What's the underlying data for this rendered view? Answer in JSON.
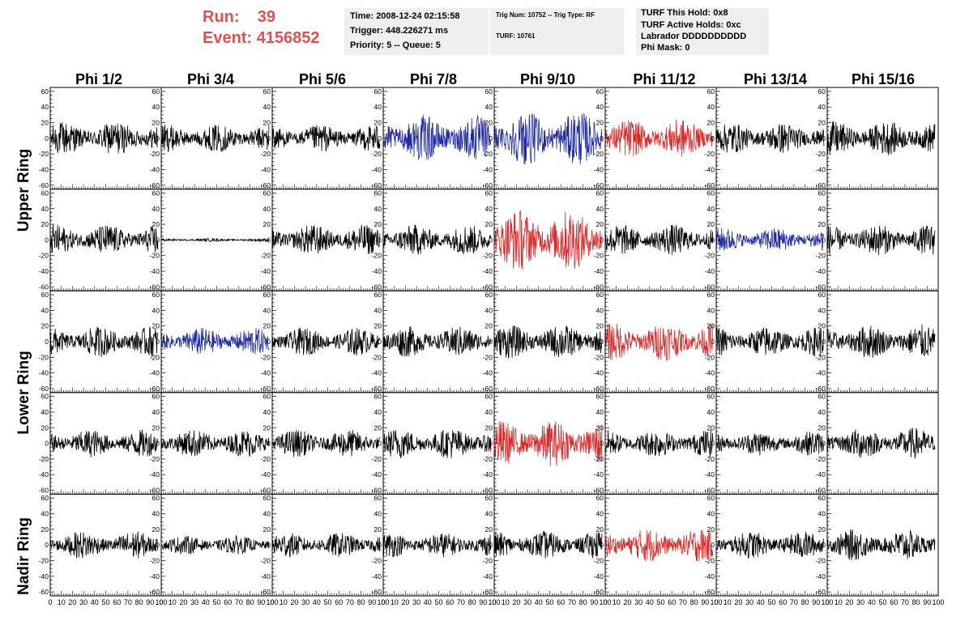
{
  "header": {
    "run_label": "Run:",
    "run_value": "39",
    "event_label": "Event:",
    "event_value": "4156852",
    "time_panel": {
      "time": "Time: 2008-12-24 02:15:58",
      "trigger": "Trigger: 448.226271 ms",
      "priority": "Priority: 5 -- Queue: 5"
    },
    "trig_panel": {
      "trig": "Trig Num: 10752 -- Trig Type: RF",
      "turf": "TURF: 10761"
    },
    "turf_panel": {
      "hold": "TURF This Hold: 0x8",
      "active": "TURF Active Holds: 0xc",
      "labrador": "Labrador DDDDDDDDDD",
      "phi_mask": "Phi Mask: 0"
    },
    "accent_color": "#d9534f"
  },
  "chart_data": {
    "type": "line",
    "columns": [
      "Phi 1/2",
      "Phi 3/4",
      "Phi 5/6",
      "Phi 7/8",
      "Phi 9/10",
      "Phi 11/12",
      "Phi 13/14",
      "Phi 15/16"
    ],
    "rows": [
      "Upper Ring",
      "Upper Ring",
      "Lower Ring",
      "Lower Ring",
      "Nadir Ring"
    ],
    "ring_labels": [
      "Upper Ring",
      "Lower Ring",
      "Nadir Ring"
    ],
    "xlim": [
      0,
      100
    ],
    "ylim": [
      -65,
      65
    ],
    "x_ticks": [
      0,
      10,
      20,
      30,
      40,
      50,
      60,
      70,
      80,
      90,
      100
    ],
    "x_tick_labels": [
      "0",
      "10",
      "20",
      "30",
      "40",
      "50",
      "60",
      "70",
      "80",
      "90",
      "100"
    ],
    "y_ticks": [
      -60,
      -40,
      -20,
      0,
      20,
      40,
      60
    ],
    "y_tick_labels": [
      "-60",
      "-40",
      "-20",
      "0",
      "20",
      "40",
      "60"
    ],
    "colors": {
      "default": "#000000",
      "blue": "#1f2b9e",
      "red": "#d62c2c"
    },
    "cell_colors": [
      [
        "default",
        "default",
        "default",
        "blue",
        "blue",
        "red",
        "default",
        "default"
      ],
      [
        "default",
        "default",
        "default",
        "default",
        "red",
        "default",
        "blue",
        "default"
      ],
      [
        "default",
        "blue",
        "default",
        "default",
        "default",
        "red",
        "default",
        "default"
      ],
      [
        "default",
        "default",
        "default",
        "default",
        "red",
        "default",
        "default",
        "default"
      ],
      [
        "default",
        "default",
        "default",
        "default",
        "default",
        "red",
        "default",
        "default"
      ]
    ],
    "cell_amplitudes": [
      [
        22,
        18,
        18,
        30,
        35,
        25,
        20,
        22
      ],
      [
        20,
        2,
        20,
        20,
        40,
        20,
        16,
        20
      ],
      [
        20,
        18,
        18,
        20,
        22,
        25,
        20,
        22
      ],
      [
        18,
        18,
        18,
        20,
        30,
        18,
        16,
        20
      ],
      [
        18,
        12,
        16,
        16,
        18,
        22,
        18,
        20
      ]
    ],
    "samples_per_trace": 260
  }
}
